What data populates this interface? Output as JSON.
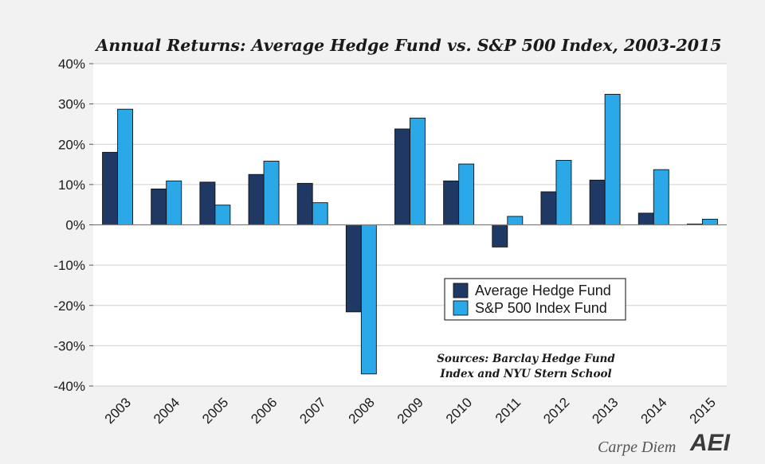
{
  "chart_data": {
    "type": "bar",
    "title": "Annual Returns: Average Hedge Fund vs. S&P 500 Index, 2003-2015",
    "xlabel": "",
    "ylabel": "",
    "categories": [
      "2003",
      "2004",
      "2005",
      "2006",
      "2007",
      "2008",
      "2009",
      "2010",
      "2011",
      "2012",
      "2013",
      "2014",
      "2015"
    ],
    "series": [
      {
        "name": "Average Hedge Fund",
        "color": "#1f3864",
        "values": [
          18.0,
          8.9,
          10.6,
          12.5,
          10.3,
          -21.6,
          23.8,
          10.9,
          -5.5,
          8.2,
          11.1,
          2.9,
          0.2
        ]
      },
      {
        "name": "S&P 500 Index Fund",
        "color": "#2aa8e8",
        "values": [
          28.7,
          10.9,
          4.9,
          15.8,
          5.5,
          -37.0,
          26.5,
          15.1,
          2.1,
          16.0,
          32.4,
          13.7,
          1.4
        ]
      }
    ],
    "ylim": [
      -40,
      40
    ],
    "yticks": [
      -40,
      -30,
      -20,
      -10,
      0,
      10,
      20,
      30,
      40
    ],
    "ytick_labels": [
      "-40%",
      "-30%",
      "-20%",
      "-10%",
      "0%",
      "10%",
      "20%",
      "30%",
      "40%"
    ],
    "grid": true,
    "legend_position": "center-right",
    "annotation": [
      "Sources: Barclay Hedge Fund",
      "Index and NYU Stern School"
    ]
  },
  "branding": {
    "tagline": "Carpe Diem",
    "logo_text": "AEI"
  }
}
